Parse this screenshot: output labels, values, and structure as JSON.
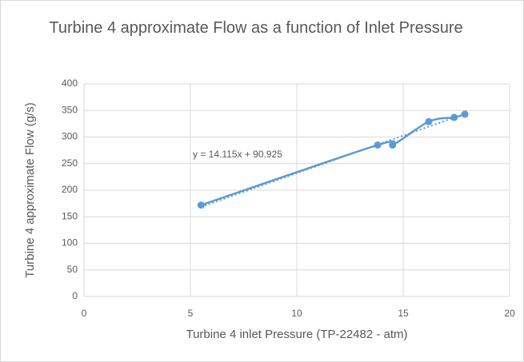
{
  "chart_data": {
    "type": "scatter",
    "title": "Turbine 4 approximate Flow as a function of Inlet Pressure",
    "xlabel": "Turbine 4 inlet Pressure (TP-22482 - atm)",
    "ylabel": "Turbine 4 approximate Flow (g/s)",
    "series": [
      {
        "name": "Flow",
        "color": "#5b9bd5",
        "x": [
          5.5,
          13.8,
          14.5,
          16.2,
          17.4,
          17.9
        ],
        "values": [
          172,
          285,
          285,
          329,
          337,
          343
        ]
      }
    ],
    "trendline": {
      "slope": 14.115,
      "intercept": 90.925,
      "label": "y = 14.115x + 90.925"
    },
    "xlim": [
      0,
      20
    ],
    "xticks": [
      0,
      5,
      10,
      15,
      20
    ],
    "ylim": [
      0,
      400
    ],
    "yticks": [
      0,
      50,
      100,
      150,
      200,
      250,
      300,
      350,
      400
    ],
    "grid": true
  }
}
